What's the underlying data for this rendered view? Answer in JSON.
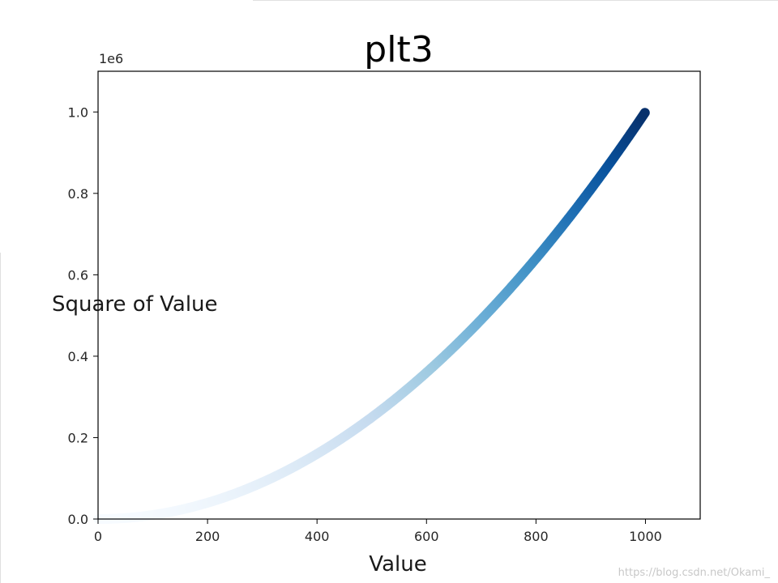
{
  "chart_data": {
    "type": "scatter",
    "title": "plt3",
    "xlabel": "Value",
    "ylabel": "Square of Value",
    "xlim": [
      0,
      1100
    ],
    "ylim": [
      0,
      1100000
    ],
    "y_offset_label": "1e6",
    "x_ticks": [
      0,
      200,
      400,
      600,
      800,
      1000
    ],
    "x_tick_labels": [
      "0",
      "200",
      "400",
      "600",
      "800",
      "1000"
    ],
    "y_ticks": [
      0,
      200000,
      400000,
      600000,
      800000,
      1000000
    ],
    "y_tick_labels": [
      "0.0",
      "0.2",
      "0.4",
      "0.6",
      "0.8",
      "1.0"
    ],
    "series": [
      {
        "x_range": [
          1,
          1000
        ],
        "formula": "y = x^2",
        "colormap": "Blues",
        "colormap_stops": [
          "#f7fbff",
          "#deebf7",
          "#c6dbef",
          "#9ecae1",
          "#6baed6",
          "#4292c6",
          "#2171b5",
          "#08519c",
          "#08306b"
        ]
      }
    ],
    "grid": false,
    "legend": false
  },
  "watermark": "https://blog.csdn.net/Okami_"
}
